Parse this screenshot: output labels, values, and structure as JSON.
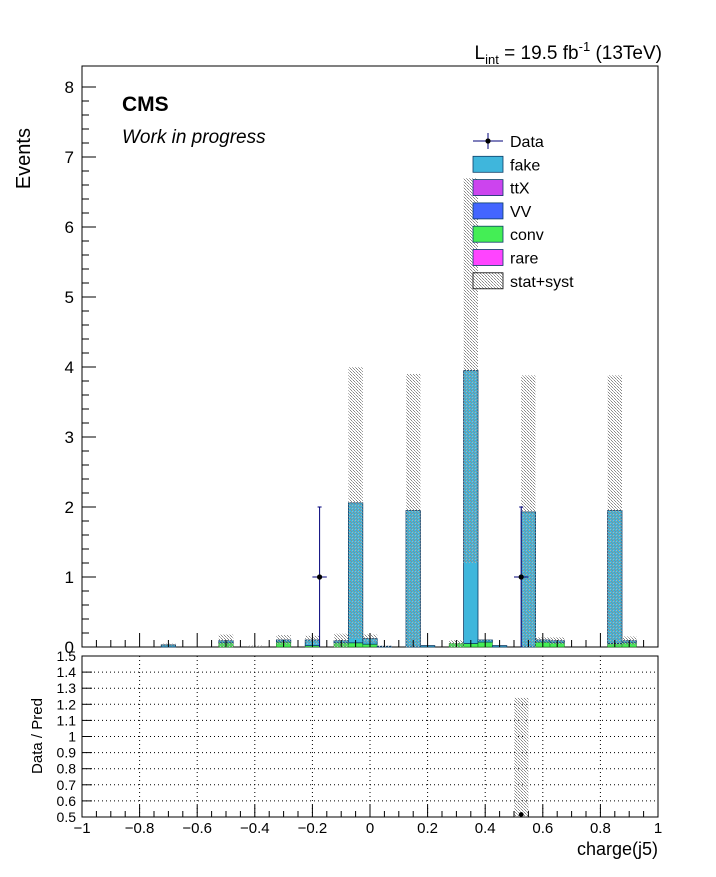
{
  "header": {
    "lumi_prefix": "L",
    "lumi_sub": "int",
    "lumi_value": " = 19.5 fb",
    "lumi_sup": "-1",
    "energy": " (13TeV)"
  },
  "labels": {
    "experiment": "CMS",
    "status": "Work in progress"
  },
  "chart_data": [
    {
      "type": "bar",
      "subtype": "stacked-histogram",
      "ylabel": "Events",
      "xlim": [
        -1,
        1
      ],
      "ylim": [
        0,
        8.3
      ],
      "y_ticks": [
        0,
        1,
        2,
        3,
        4,
        5,
        6,
        7,
        8
      ],
      "bin_width": 0.05,
      "legend_placement": "top-right",
      "legend": [
        {
          "name": "Data",
          "style": "marker",
          "color": "#000000"
        },
        {
          "name": "fake",
          "style": "fill",
          "color": "#3fb6dc"
        },
        {
          "name": "ttX",
          "style": "fill",
          "color": "#cc44ee"
        },
        {
          "name": "VV",
          "style": "fill",
          "color": "#4466ff"
        },
        {
          "name": "conv",
          "style": "fill",
          "color": "#44ee55"
        },
        {
          "name": "rare",
          "style": "fill",
          "color": "#ff44ff"
        },
        {
          "name": "stat+syst",
          "style": "hatch",
          "color": "#999999"
        }
      ],
      "bins": [
        {
          "x": -0.7,
          "fake": 0.03,
          "conv": 0.0,
          "unc": 0.05
        },
        {
          "x": -0.5,
          "fake": 0.03,
          "conv": 0.06,
          "unc": 0.18
        },
        {
          "x": -0.4,
          "fake": 0.0,
          "conv": 0.0,
          "unc": 0.02
        },
        {
          "x": -0.3,
          "fake": 0.03,
          "conv": 0.07,
          "unc": 0.17
        },
        {
          "x": -0.2,
          "fake": 0.08,
          "conv": 0.02,
          "unc": 0.16
        },
        {
          "x": -0.1,
          "fake": 0.03,
          "conv": 0.06,
          "unc": 0.19
        },
        {
          "x": -0.05,
          "fake": 2.0,
          "conv": 0.06,
          "unc": 4.0
        },
        {
          "x": 0.0,
          "fake": 0.08,
          "conv": 0.04,
          "unc": 0.18
        },
        {
          "x": 0.05,
          "fake": 0.01,
          "conv": 0.0,
          "unc": 0.02
        },
        {
          "x": 0.15,
          "fake": 1.95,
          "conv": 0.0,
          "unc": 3.9
        },
        {
          "x": 0.2,
          "fake": 0.02,
          "conv": 0.0,
          "unc": 0.02
        },
        {
          "x": 0.3,
          "fake": 0.0,
          "conv": 0.05,
          "unc": 0.1
        },
        {
          "x": 0.35,
          "fake": 3.9,
          "conv": 0.05,
          "unc": 6.7
        },
        {
          "x": 0.4,
          "fake": 0.03,
          "conv": 0.07,
          "unc": 0.11
        },
        {
          "x": 0.45,
          "fake": 0.02,
          "conv": 0.0,
          "unc": 0.02
        },
        {
          "x": 0.55,
          "fake": 1.93,
          "conv": 0.0,
          "unc": 3.88
        },
        {
          "x": 0.6,
          "fake": 0.03,
          "conv": 0.07,
          "unc": 0.14
        },
        {
          "x": 0.65,
          "fake": 0.03,
          "conv": 0.06,
          "unc": 0.14
        },
        {
          "x": 0.85,
          "fake": 1.9,
          "conv": 0.05,
          "unc": 3.88
        },
        {
          "x": 0.9,
          "fake": 0.03,
          "conv": 0.06,
          "unc": 0.15
        }
      ],
      "data_points": [
        {
          "x": -0.175,
          "y": 1,
          "xerr": 0.025,
          "yerr_up": 1.0,
          "yerr_down": 1.0
        },
        {
          "x": 0.525,
          "y": 1,
          "xerr": 0.025,
          "yerr_up": 1.0,
          "yerr_down": 1.0
        }
      ]
    },
    {
      "type": "scatter",
      "subtype": "ratio",
      "ylabel": "Data / Pred",
      "xlabel": "charge(j5)",
      "xlim": [
        -1,
        1
      ],
      "ylim": [
        0.5,
        1.5
      ],
      "grid": true,
      "x_tick_labels": [
        "−1",
        "−0.8",
        "−0.6",
        "−0.4",
        "−0.2",
        "0",
        "0.2",
        "0.4",
        "0.6",
        "0.8",
        "1"
      ],
      "x_tick_values": [
        -1,
        -0.8,
        -0.6,
        -0.4,
        -0.2,
        0,
        0.2,
        0.4,
        0.6,
        0.8,
        1
      ],
      "y_tick_labels": [
        "0.5",
        "0.6",
        "0.7",
        "0.8",
        "0.9",
        "1",
        "1.1",
        "1.2",
        "1.3",
        "1.4",
        "1.5"
      ],
      "y_tick_values": [
        0.5,
        0.6,
        0.7,
        0.8,
        0.9,
        1,
        1.1,
        1.2,
        1.3,
        1.4,
        1.5
      ],
      "uncertainty_bands": [
        {
          "x": 0.525,
          "width": 0.05,
          "low": 0.5,
          "high": 1.24
        }
      ],
      "points": [
        {
          "x": 0.525,
          "y": 0.515
        }
      ]
    }
  ]
}
